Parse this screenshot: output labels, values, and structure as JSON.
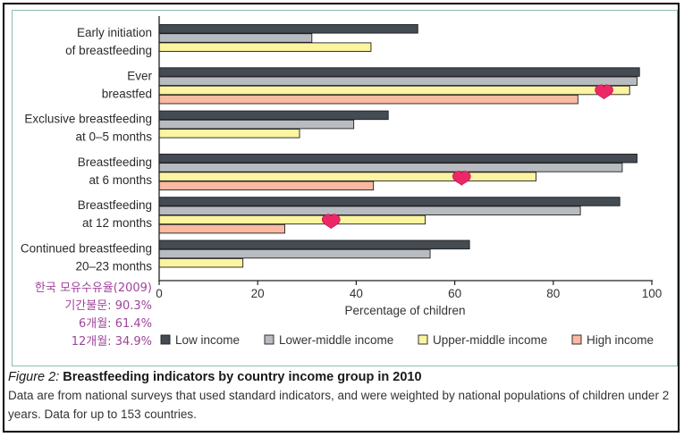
{
  "chart_data": {
    "type": "bar",
    "orientation": "horizontal",
    "categories": [
      [
        "Early initiation",
        "of breastfeeding"
      ],
      [
        "Ever",
        "breastfed"
      ],
      [
        "Exclusive breastfeeding",
        "at 0–5 months"
      ],
      [
        "Breastfeeding",
        "at 6 months"
      ],
      [
        "Breastfeeding",
        "at 12 months"
      ],
      [
        "Continued breastfeeding",
        "20–23 months"
      ]
    ],
    "series": [
      {
        "name": "Low income",
        "color": "#444b52",
        "values": [
          52.5,
          97.5,
          46.5,
          97,
          93.5,
          63
        ]
      },
      {
        "name": "Lower-middle income",
        "color": "#b8bcc0",
        "values": [
          31,
          97,
          39.5,
          94,
          85.5,
          55
        ]
      },
      {
        "name": "Upper-middle income",
        "color": "#fbf4a0",
        "values": [
          43,
          95.5,
          28.5,
          76.5,
          54,
          17
        ]
      },
      {
        "name": "High income",
        "color": "#f9b9a3",
        "values": [
          null,
          85,
          null,
          43.5,
          25.5,
          null
        ]
      }
    ],
    "xlabel": "Percentage of children",
    "xlim": [
      0,
      100
    ],
    "xticks": [
      0,
      20,
      40,
      60,
      80,
      100
    ],
    "legend_position": "bottom",
    "annotations": {
      "korea_lines": [
        "한국 모유수유율(2009)",
        "기간불문: 90.3%",
        "6개월: 61.4%",
        "12개월: 34.9%"
      ],
      "korea_color": "#a0449a",
      "hearts": [
        {
          "label": "기간불문",
          "value": 90.3,
          "category_index": 1
        },
        {
          "label": "6개월",
          "value": 61.4,
          "category_index": 3
        },
        {
          "label": "12개월",
          "value": 34.9,
          "category_index": 4
        }
      ],
      "heart_color": "#ec2766"
    }
  },
  "caption": {
    "figure_label": "Figure 2:",
    "title": "Breastfeeding indicators by country income group in 2010",
    "body": "Data are from national surveys that used standard indicators, and were weighted by national populations of children under 2 years. Data for up to 153 countries."
  }
}
